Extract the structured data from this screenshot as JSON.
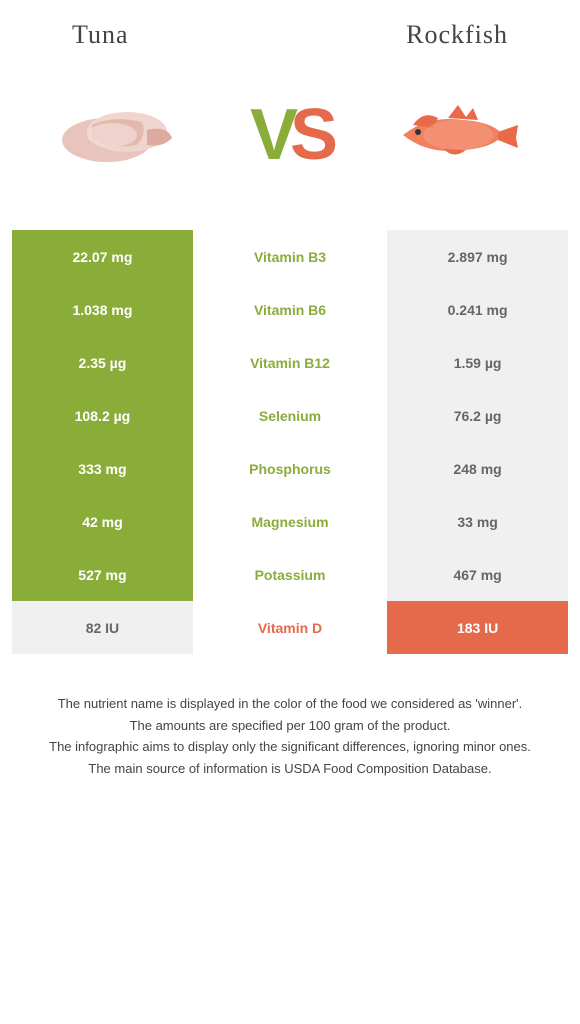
{
  "header": {
    "left_title": "Tuna",
    "right_title": "Rockfish"
  },
  "vs": {
    "v": "V",
    "s": "S"
  },
  "colors": {
    "winner_left": "#8aad3a",
    "winner_right": "#e56a4c",
    "loser": "#f1f0f0",
    "loser_text": "#666666",
    "winner_text": "#ffffff",
    "nutrient_left": "#8aad3a",
    "nutrient_right": "#e56a4c"
  },
  "rows": [
    {
      "left": "22.07 mg",
      "nutrient": "Vitamin B3",
      "right": "2.897 mg",
      "winner": "left"
    },
    {
      "left": "1.038 mg",
      "nutrient": "Vitamin B6",
      "right": "0.241 mg",
      "winner": "left"
    },
    {
      "left": "2.35 µg",
      "nutrient": "Vitamin B12",
      "right": "1.59 µg",
      "winner": "left"
    },
    {
      "left": "108.2 µg",
      "nutrient": "Selenium",
      "right": "76.2 µg",
      "winner": "left"
    },
    {
      "left": "333 mg",
      "nutrient": "Phosphorus",
      "right": "248 mg",
      "winner": "left"
    },
    {
      "left": "42 mg",
      "nutrient": "Magnesium",
      "right": "33 mg",
      "winner": "left"
    },
    {
      "left": "527 mg",
      "nutrient": "Potassium",
      "right": "467 mg",
      "winner": "left"
    },
    {
      "left": "82 IU",
      "nutrient": "Vitamin D",
      "right": "183 IU",
      "winner": "right"
    }
  ],
  "footer": {
    "line1": "The nutrient name is displayed in the color of the food we considered as 'winner'.",
    "line2": "The amounts are specified per 100 gram of the product.",
    "line3": "The infographic aims to display only the significant differences, ignoring minor ones.",
    "line4": "The main source of information is USDA Food Composition Database."
  }
}
